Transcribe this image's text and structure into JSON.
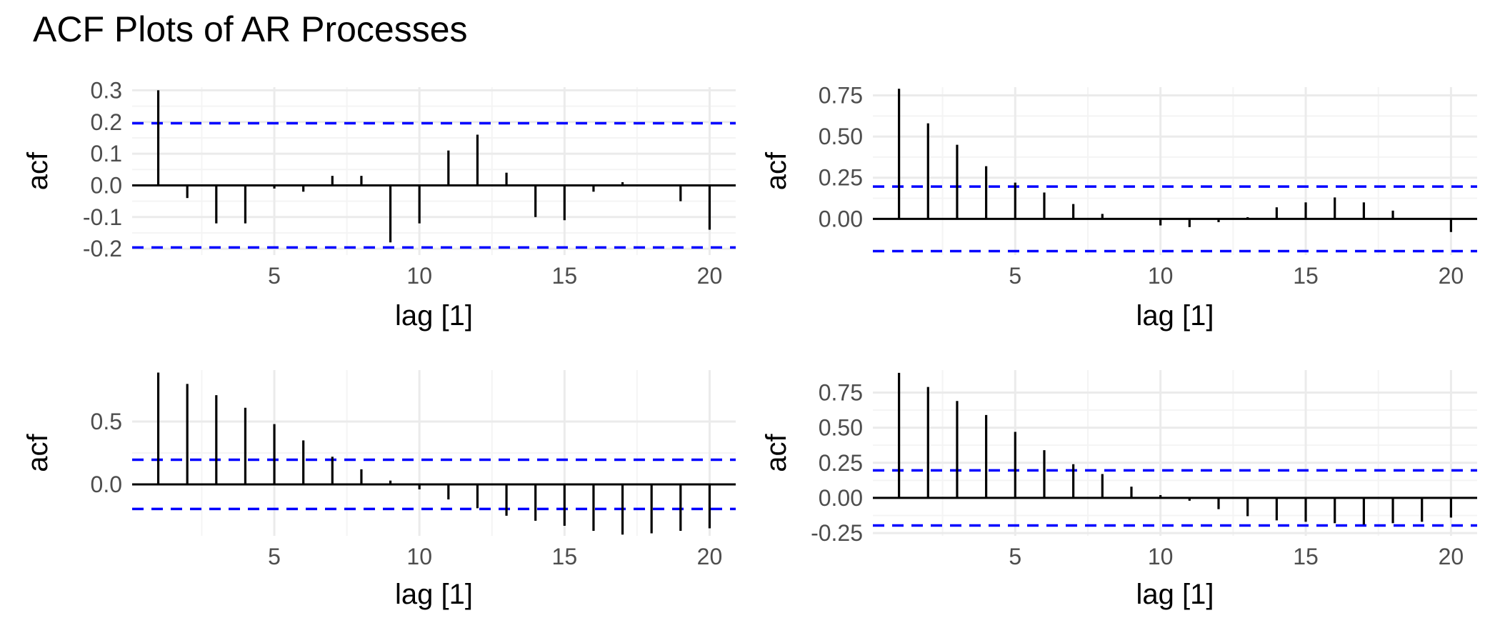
{
  "title": "ACF Plots of AR Processes",
  "colors": {
    "bar": "#000000",
    "ci": "#0000ff",
    "grid_major": "#ebebeb",
    "grid_minor": "#f4f4f4",
    "tick_text": "#4d4d4d"
  },
  "chart_data": [
    {
      "type": "bar",
      "title": "",
      "xlabel": "lag [1]",
      "ylabel": "acf",
      "xlim": [
        0.1,
        20.9
      ],
      "ylim": [
        -0.22,
        0.31
      ],
      "x_ticks": [
        5,
        10,
        15,
        20
      ],
      "y_ticks": [
        -0.2,
        -0.1,
        0.0,
        0.1,
        0.2,
        0.3
      ],
      "y_tick_labels": [
        "-0.2",
        "-0.1",
        "0.0",
        "0.1",
        "0.2",
        "0.3"
      ],
      "ci": [
        0.196,
        -0.196
      ],
      "grid": true,
      "lags": [
        1,
        2,
        3,
        4,
        5,
        6,
        7,
        8,
        9,
        10,
        11,
        12,
        13,
        14,
        15,
        16,
        17,
        18,
        19,
        20
      ],
      "values": [
        0.3,
        -0.04,
        -0.12,
        -0.12,
        -0.01,
        -0.02,
        0.03,
        0.03,
        -0.18,
        -0.12,
        0.11,
        0.16,
        0.04,
        -0.1,
        -0.11,
        -0.02,
        0.01,
        0.0,
        -0.05,
        -0.14
      ]
    },
    {
      "type": "bar",
      "title": "",
      "xlabel": "lag [1]",
      "ylabel": "acf",
      "xlim": [
        0.1,
        20.9
      ],
      "ylim": [
        -0.22,
        0.8
      ],
      "x_ticks": [
        5,
        10,
        15,
        20
      ],
      "y_ticks": [
        0.0,
        0.25,
        0.5,
        0.75
      ],
      "y_tick_labels": [
        "0.00",
        "0.25",
        "0.50",
        "0.75"
      ],
      "ci": [
        0.196,
        -0.196
      ],
      "grid": true,
      "lags": [
        1,
        2,
        3,
        4,
        5,
        6,
        7,
        8,
        9,
        10,
        11,
        12,
        13,
        14,
        15,
        16,
        17,
        18,
        19,
        20
      ],
      "values": [
        0.79,
        0.58,
        0.45,
        0.32,
        0.22,
        0.16,
        0.09,
        0.03,
        0.0,
        -0.04,
        -0.05,
        -0.02,
        0.01,
        0.07,
        0.1,
        0.13,
        0.1,
        0.05,
        0.0,
        -0.08
      ]
    },
    {
      "type": "bar",
      "title": "",
      "xlabel": "lag [1]",
      "ylabel": "acf",
      "xlim": [
        0.1,
        20.9
      ],
      "ylim": [
        -0.41,
        0.91
      ],
      "x_ticks": [
        5,
        10,
        15,
        20
      ],
      "y_ticks": [
        0.0,
        0.5
      ],
      "y_tick_labels": [
        "0.0",
        "0.5"
      ],
      "ci": [
        0.196,
        -0.196
      ],
      "grid": true,
      "lags": [
        1,
        2,
        3,
        4,
        5,
        6,
        7,
        8,
        9,
        10,
        11,
        12,
        13,
        14,
        15,
        16,
        17,
        18,
        19,
        20
      ],
      "values": [
        0.89,
        0.8,
        0.71,
        0.61,
        0.48,
        0.35,
        0.22,
        0.12,
        0.03,
        -0.04,
        -0.12,
        -0.19,
        -0.25,
        -0.29,
        -0.33,
        -0.37,
        -0.4,
        -0.39,
        -0.37,
        -0.35
      ]
    },
    {
      "type": "bar",
      "title": "",
      "xlabel": "lag [1]",
      "ylabel": "acf",
      "xlim": [
        0.1,
        20.9
      ],
      "ylim": [
        -0.27,
        0.91
      ],
      "x_ticks": [
        5,
        10,
        15,
        20
      ],
      "y_ticks": [
        -0.25,
        0.0,
        0.25,
        0.5,
        0.75
      ],
      "y_tick_labels": [
        "-0.25",
        "0.00",
        "0.25",
        "0.50",
        "0.75"
      ],
      "ci": [
        0.196,
        -0.196
      ],
      "grid": true,
      "lags": [
        1,
        2,
        3,
        4,
        5,
        6,
        7,
        8,
        9,
        10,
        11,
        12,
        13,
        14,
        15,
        16,
        17,
        18,
        19,
        20
      ],
      "values": [
        0.89,
        0.79,
        0.69,
        0.59,
        0.47,
        0.34,
        0.24,
        0.17,
        0.08,
        0.02,
        -0.02,
        -0.08,
        -0.13,
        -0.16,
        -0.17,
        -0.18,
        -0.19,
        -0.18,
        -0.17,
        -0.14
      ]
    }
  ]
}
